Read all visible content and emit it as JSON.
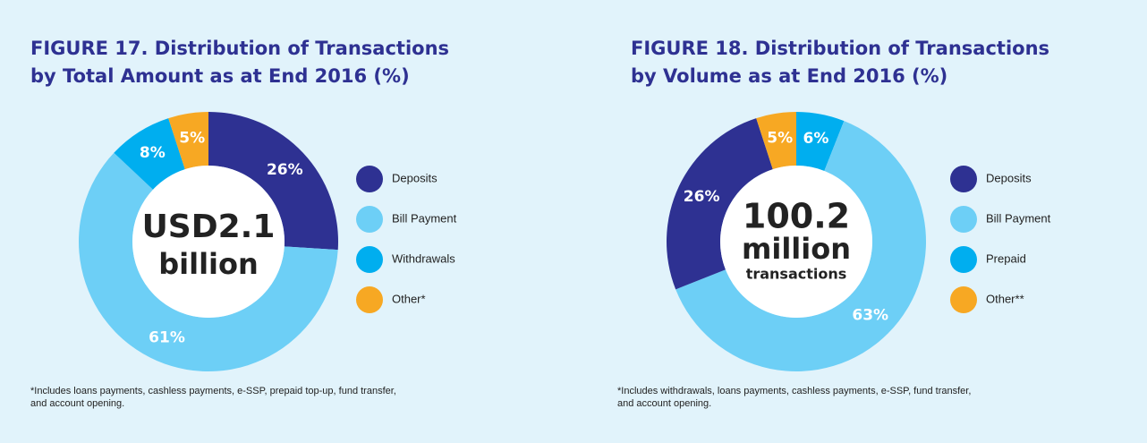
{
  "chart_data": [
    {
      "type": "pie",
      "title": [
        "FIGURE 17. Distribution of Transactions",
        "by Total Amount as at End 2016 (%)"
      ],
      "center_text": [
        "USD2.1",
        "billion"
      ],
      "categories": [
        "Deposits",
        "Bill Payment",
        "Withdrawals",
        "Other*"
      ],
      "values": [
        26,
        61,
        8,
        5
      ],
      "value_labels": [
        "26%",
        "61%",
        "8%",
        "5%"
      ],
      "colors": [
        "#2e3192",
        "#6dcff6",
        "#00aeef",
        "#f7a823"
      ],
      "footnote": [
        "*Includes loans payments, cashless payments, e-SSP, prepaid top-up, fund transfer,",
        "and account opening."
      ]
    },
    {
      "type": "pie",
      "title": [
        "FIGURE 18. Distribution of Transactions",
        "by Volume as at End 2016 (%)"
      ],
      "center_text": [
        "100.2",
        "million",
        "transactions"
      ],
      "categories": [
        "Deposits",
        "Bill Payment",
        "Prepaid",
        "Other**"
      ],
      "values": [
        26,
        63,
        6,
        5
      ],
      "value_labels": [
        "26%",
        "63%",
        "6%",
        "5%"
      ],
      "colors": [
        "#2e3192",
        "#6dcff6",
        "#00aeef",
        "#f7a823"
      ],
      "footnote": [
        "*Includes withdrawals, loans payments, cashless payments, e-SSP, fund transfer,",
        "and account opening."
      ]
    }
  ]
}
